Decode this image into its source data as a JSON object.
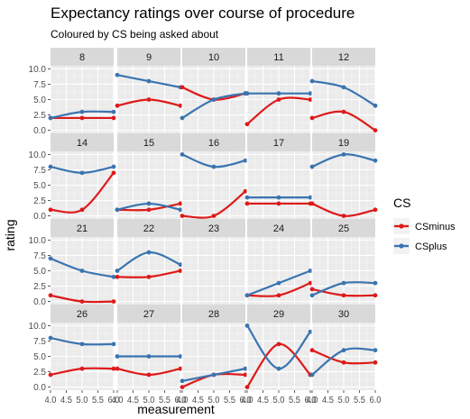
{
  "chart_data": {
    "type": "line",
    "title": "Expectancy ratings over course of procedure",
    "subtitle": "Coloured by CS being asked about",
    "xlabel": "measurement",
    "ylabel": "rating",
    "x": [
      4.0,
      5.0,
      6.0
    ],
    "x_tick_labels": [
      "4.0",
      "4.5",
      "5.0",
      "5.5",
      "6.0"
    ],
    "x_ticks": [
      4.0,
      4.5,
      5.0,
      5.5,
      6.0
    ],
    "xlim": [
      4.0,
      6.0
    ],
    "ylim": [
      -0.5,
      10.5
    ],
    "y_ticks": [
      0,
      2.5,
      5,
      7.5,
      10
    ],
    "y_tick_labels": [
      "0.0",
      "2.5",
      "5.0",
      "7.5",
      "10.0"
    ],
    "grid": true,
    "legend": {
      "title": "CS",
      "position": "right",
      "entries": [
        {
          "name": "CSminus",
          "color": "#de1a1a"
        },
        {
          "name": "CSplus",
          "color": "#3a74b0"
        }
      ]
    },
    "facets": [
      {
        "label": "8",
        "CSminus": [
          2,
          2,
          2
        ],
        "CSplus": [
          2,
          3,
          3
        ]
      },
      {
        "label": "9",
        "CSminus": [
          4,
          5,
          4
        ],
        "CSplus": [
          9,
          8,
          7
        ]
      },
      {
        "label": "10",
        "CSminus": [
          7,
          5,
          6
        ],
        "CSplus": [
          2,
          5,
          6
        ]
      },
      {
        "label": "11",
        "CSminus": [
          1,
          5,
          5
        ],
        "CSplus": [
          6,
          6,
          6
        ]
      },
      {
        "label": "12",
        "CSminus": [
          2,
          3,
          0
        ],
        "CSplus": [
          8,
          7,
          4
        ]
      },
      {
        "label": "14",
        "CSminus": [
          1,
          1,
          7
        ],
        "CSplus": [
          8,
          7,
          8
        ]
      },
      {
        "label": "15",
        "CSminus": [
          1,
          1,
          2
        ],
        "CSplus": [
          1,
          2,
          1
        ]
      },
      {
        "label": "16",
        "CSminus": [
          0,
          0,
          4
        ],
        "CSplus": [
          10,
          8,
          9
        ]
      },
      {
        "label": "17",
        "CSminus": [
          2,
          2,
          2
        ],
        "CSplus": [
          3,
          3,
          3
        ]
      },
      {
        "label": "19",
        "CSminus": [
          2,
          0,
          1
        ],
        "CSplus": [
          8,
          10,
          9
        ]
      },
      {
        "label": "21",
        "CSminus": [
          1,
          0,
          0
        ],
        "CSplus": [
          7,
          5,
          4
        ]
      },
      {
        "label": "22",
        "CSminus": [
          4,
          4,
          5
        ],
        "CSplus": [
          5,
          8,
          6
        ]
      },
      {
        "label": "23",
        "CSminus": [],
        "CSplus": []
      },
      {
        "label": "24",
        "CSminus": [
          1,
          1,
          3
        ],
        "CSplus": [
          1,
          3,
          5
        ]
      },
      {
        "label": "25",
        "CSminus": [
          2,
          1,
          1
        ],
        "CSplus": [
          1,
          3,
          3
        ]
      },
      {
        "label": "26",
        "CSminus": [
          2,
          3,
          3
        ],
        "CSplus": [
          8,
          7,
          7
        ]
      },
      {
        "label": "27",
        "CSminus": [
          3,
          2,
          3
        ],
        "CSplus": [
          5,
          5,
          5
        ]
      },
      {
        "label": "28",
        "CSminus": [
          0,
          2,
          2
        ],
        "CSplus": [
          1,
          2,
          3
        ]
      },
      {
        "label": "29",
        "CSminus": [
          0,
          7,
          2
        ],
        "CSplus": [
          10,
          3,
          9
        ]
      },
      {
        "label": "30",
        "CSminus": [
          6,
          4,
          4
        ],
        "CSplus": [
          2,
          6,
          6
        ]
      }
    ]
  }
}
